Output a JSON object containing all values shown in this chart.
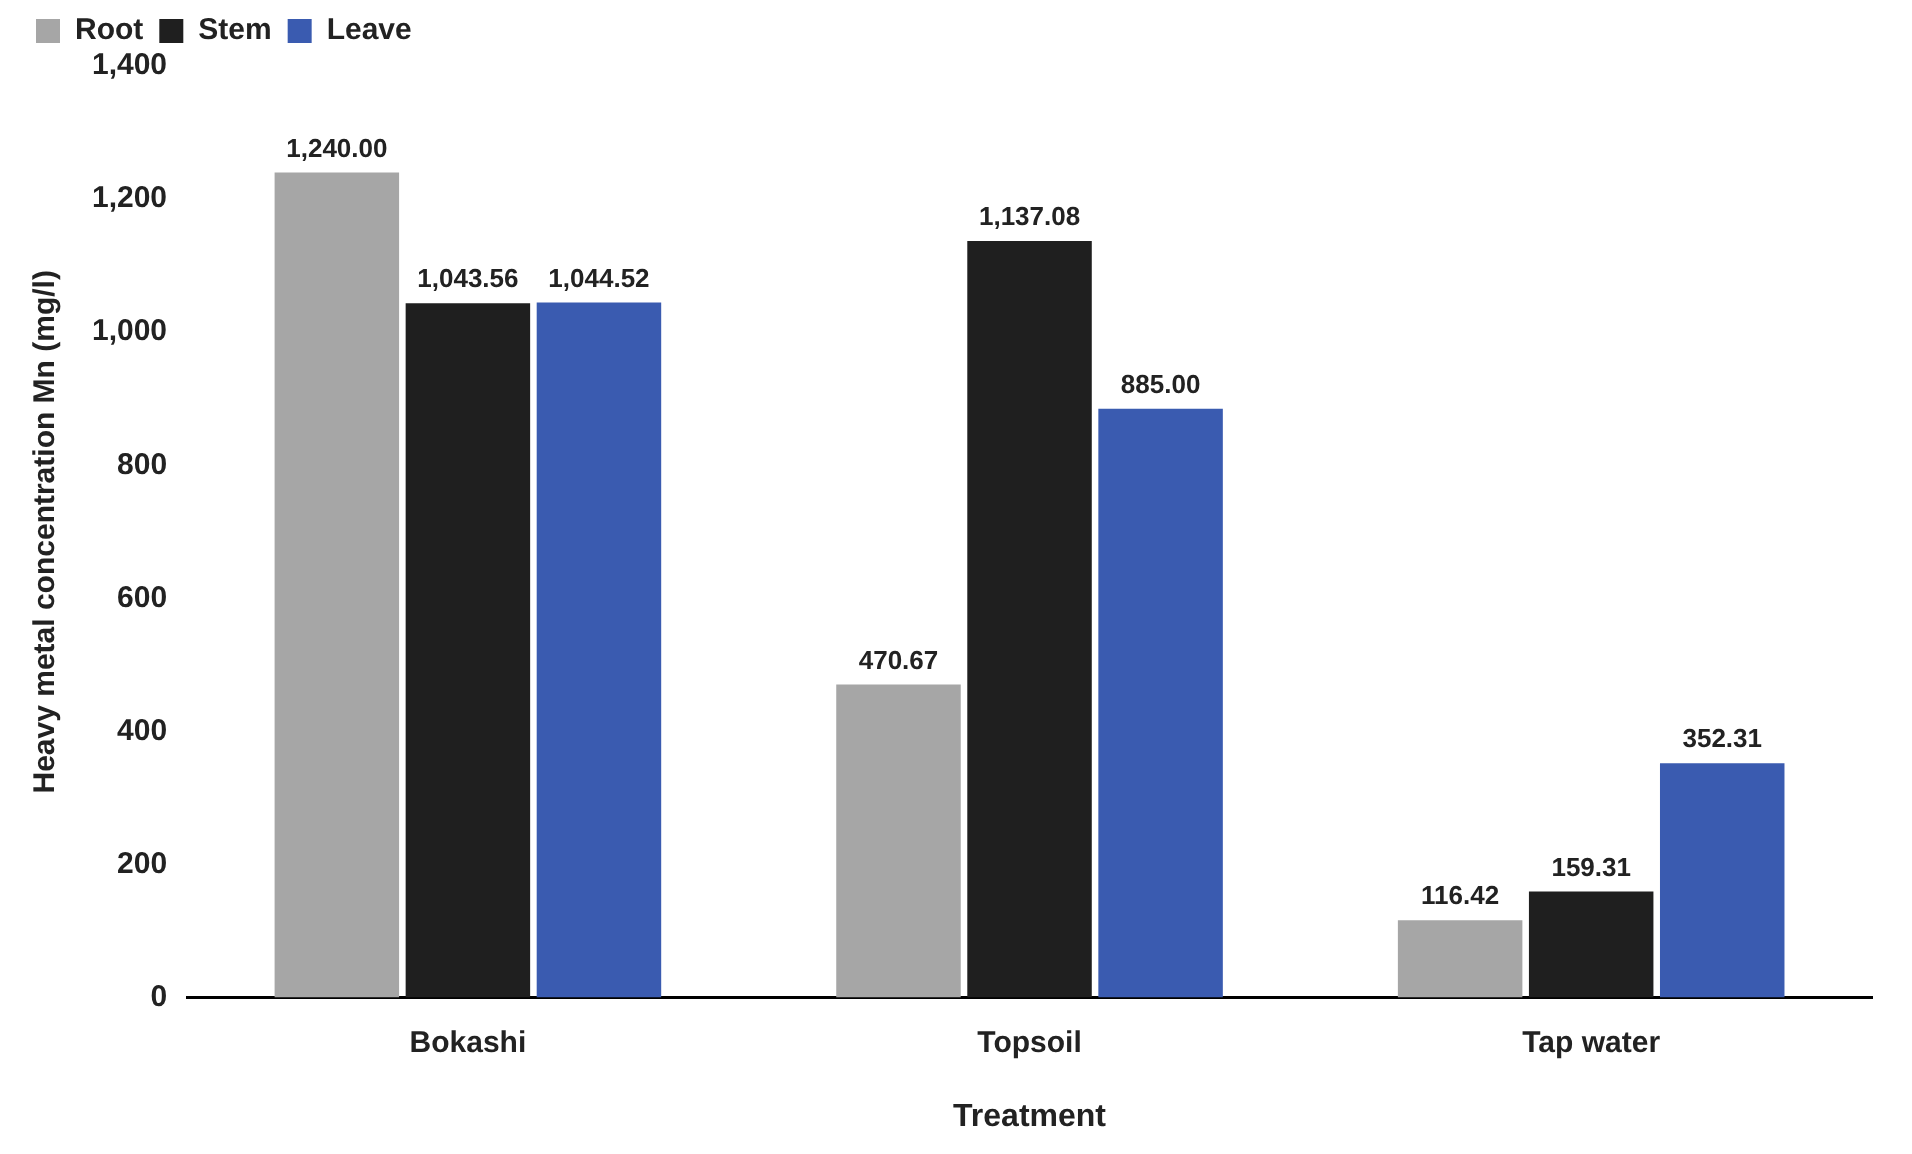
{
  "chart_data": {
    "type": "bar",
    "xlabel": "Treatment",
    "ylabel": "Heavy metal concentration Mn (mg/l)",
    "categories": [
      "Bokashi",
      "Topsoil",
      "Tap water"
    ],
    "series": [
      {
        "name": "Root",
        "color": "#a6a6a6",
        "values": [
          1240.0,
          470.67,
          116.42
        ],
        "value_labels": [
          "1,240.00",
          "470.67",
          "116.42"
        ]
      },
      {
        "name": "Stem",
        "color": "#1f1f1f",
        "values": [
          1043.56,
          1137.08,
          159.31
        ],
        "value_labels": [
          "1,043.56",
          "1,137.08",
          "159.31"
        ]
      },
      {
        "name": "Leave",
        "color": "#3a5bb0",
        "values": [
          1044.52,
          885.0,
          352.31
        ],
        "value_labels": [
          "1,044.52",
          "885.00",
          "352.31"
        ]
      }
    ],
    "ylim": [
      0,
      1400
    ],
    "yticks": [
      0,
      200,
      400,
      600,
      800,
      {
        "value": 1000,
        "label": "1,000"
      },
      {
        "value": 1200,
        "label": "1,200"
      },
      {
        "value": 1400,
        "label": "1,400"
      }
    ],
    "grid": false,
    "legend": "top left"
  }
}
